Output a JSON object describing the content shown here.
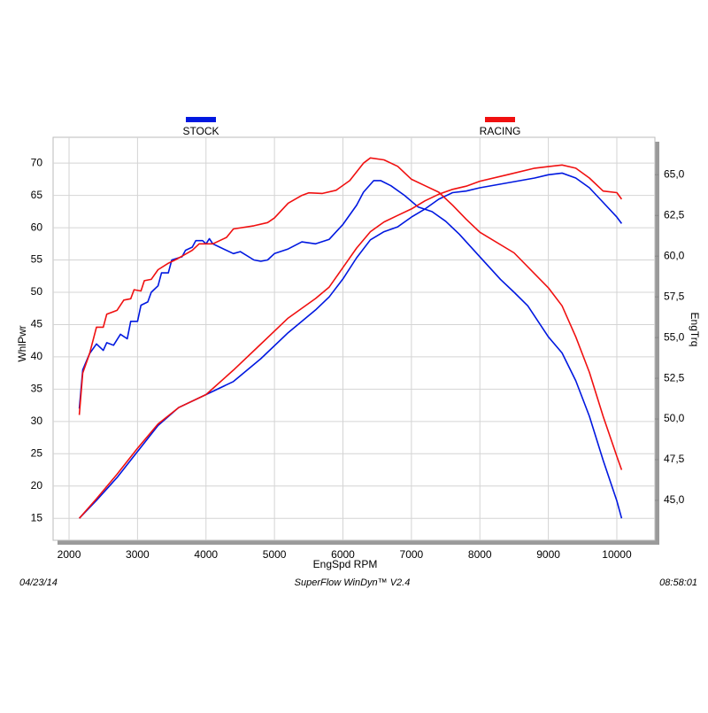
{
  "chart_data": {
    "type": "line",
    "x_label": "EngSpd  RPM",
    "y_label": "WhlPwr",
    "y2_label": "EngTrq",
    "date": "04/23/14",
    "software": "SuperFlow WinDyn™  V2.4",
    "time": "08:58:01",
    "xlim": [
      1767,
      10556
    ],
    "xticks": [
      2000,
      3000,
      4000,
      5000,
      6000,
      7000,
      8000,
      9000,
      10000
    ],
    "ylim": [
      11.6,
      74
    ],
    "yticks": [
      15,
      20,
      25,
      30,
      35,
      40,
      45,
      50,
      55,
      60,
      65,
      70
    ],
    "y2lim": [
      42.55,
      67.3
    ],
    "y2ticks": [
      {
        "value": 45,
        "label": "45,0"
      },
      {
        "value": 47.5,
        "label": "47,5"
      },
      {
        "value": 50,
        "label": "50,0"
      },
      {
        "value": 52.5,
        "label": "52,5"
      },
      {
        "value": 55,
        "label": "55,0"
      },
      {
        "value": 57.5,
        "label": "57,5"
      },
      {
        "value": 60,
        "label": "60,0"
      },
      {
        "value": 62.5,
        "label": "62,5"
      },
      {
        "value": 65,
        "label": "65,0"
      }
    ],
    "grid": true,
    "series": [
      {
        "name": "STOCK",
        "color": "#0018e0",
        "power": {
          "x": [
            2150,
            2200,
            2300,
            2400,
            2500,
            2550,
            2650,
            2750,
            2850,
            2900,
            3000,
            3050,
            3150,
            3200,
            3300,
            3350,
            3450,
            3500,
            3650,
            3700,
            3800,
            3850,
            3950,
            4000,
            4050,
            4100,
            4200,
            4400,
            4500,
            4700,
            4800,
            4900,
            5000,
            5200,
            5400,
            5600,
            5800,
            6000,
            6200,
            6300,
            6450,
            6550,
            6700,
            6900,
            7100,
            7300,
            7500,
            7700,
            8000,
            8300,
            8500,
            8700,
            9000,
            9200,
            9400,
            9600,
            9800,
            10000,
            10070
          ],
          "values": [
            32,
            38,
            40.5,
            42,
            41,
            42.2,
            41.8,
            43.5,
            42.8,
            45.5,
            45.5,
            48,
            48.5,
            50,
            51,
            53,
            53,
            55,
            55.5,
            56.5,
            57,
            58,
            58,
            57.5,
            58.3,
            57.5,
            57,
            56,
            56.3,
            55,
            54.8,
            55,
            56,
            56.7,
            57.8,
            57.5,
            58.2,
            60.5,
            63.5,
            65.5,
            67.3,
            67.3,
            66.5,
            65,
            63.2,
            62.5,
            61,
            59,
            55.5,
            52,
            50,
            47.9,
            43.1,
            40.6,
            36.3,
            30.8,
            24,
            17.7,
            15
          ]
        },
        "torque": {
          "x": [
            2150,
            2400,
            2700,
            3000,
            3300,
            3600,
            4000,
            4400,
            4800,
            5200,
            5600,
            5800,
            6000,
            6200,
            6400,
            6600,
            6800,
            7000,
            7200,
            7400,
            7600,
            7800,
            8000,
            8400,
            8800,
            9000,
            9200,
            9400,
            9600,
            9800,
            10000,
            10070
          ],
          "values": [
            43.9,
            45.0,
            46.4,
            48.0,
            49.6,
            50.7,
            51.5,
            52.3,
            53.7,
            55.3,
            56.7,
            57.5,
            58.6,
            59.9,
            61.0,
            61.5,
            61.8,
            62.4,
            62.9,
            63.5,
            63.9,
            64.0,
            64.2,
            64.5,
            64.8,
            65.0,
            65.1,
            64.8,
            64.2,
            63.3,
            62.4,
            62.0
          ]
        }
      },
      {
        "name": "RACING",
        "color": "#f01010",
        "power": {
          "x": [
            2150,
            2200,
            2300,
            2400,
            2500,
            2550,
            2700,
            2800,
            2900,
            2950,
            3050,
            3100,
            3200,
            3300,
            3450,
            3550,
            3650,
            3800,
            3900,
            4100,
            4300,
            4400,
            4700,
            4900,
            5000,
            5200,
            5400,
            5500,
            5700,
            5900,
            6100,
            6300,
            6400,
            6600,
            6800,
            7000,
            7200,
            7400,
            7600,
            7800,
            8000,
            8500,
            9000,
            9200,
            9400,
            9600,
            9800,
            10000,
            10070
          ],
          "values": [
            31,
            37.5,
            40.5,
            44.6,
            44.6,
            46.6,
            47.2,
            48.8,
            49,
            50.4,
            50.2,
            51.8,
            52,
            53.5,
            54.5,
            55,
            55.6,
            56.5,
            57.5,
            57.5,
            58.5,
            59.8,
            60.3,
            60.8,
            61.5,
            63.8,
            65,
            65.4,
            65.3,
            65.8,
            67.3,
            70,
            70.8,
            70.5,
            69.5,
            67.5,
            66.5,
            65.5,
            63.5,
            61.3,
            59.3,
            56.1,
            50.7,
            47.9,
            43.1,
            37.6,
            30.8,
            24.6,
            22.5
          ]
        },
        "torque": {
          "x": [
            2150,
            2400,
            2700,
            3000,
            3300,
            3600,
            4000,
            4400,
            4800,
            5200,
            5600,
            5800,
            6000,
            6200,
            6400,
            6600,
            6800,
            7000,
            7200,
            7400,
            7600,
            7800,
            8000,
            8400,
            8800,
            9000,
            9200,
            9400,
            9600,
            9800,
            10000,
            10070
          ],
          "values": [
            43.9,
            45.1,
            46.6,
            48.2,
            49.7,
            50.7,
            51.5,
            53.0,
            54.6,
            56.2,
            57.4,
            58.1,
            59.3,
            60.5,
            61.5,
            62.1,
            62.5,
            62.9,
            63.4,
            63.8,
            64.1,
            64.3,
            64.6,
            65.0,
            65.4,
            65.5,
            65.6,
            65.4,
            64.8,
            64.0,
            63.9,
            63.5
          ]
        }
      }
    ]
  }
}
